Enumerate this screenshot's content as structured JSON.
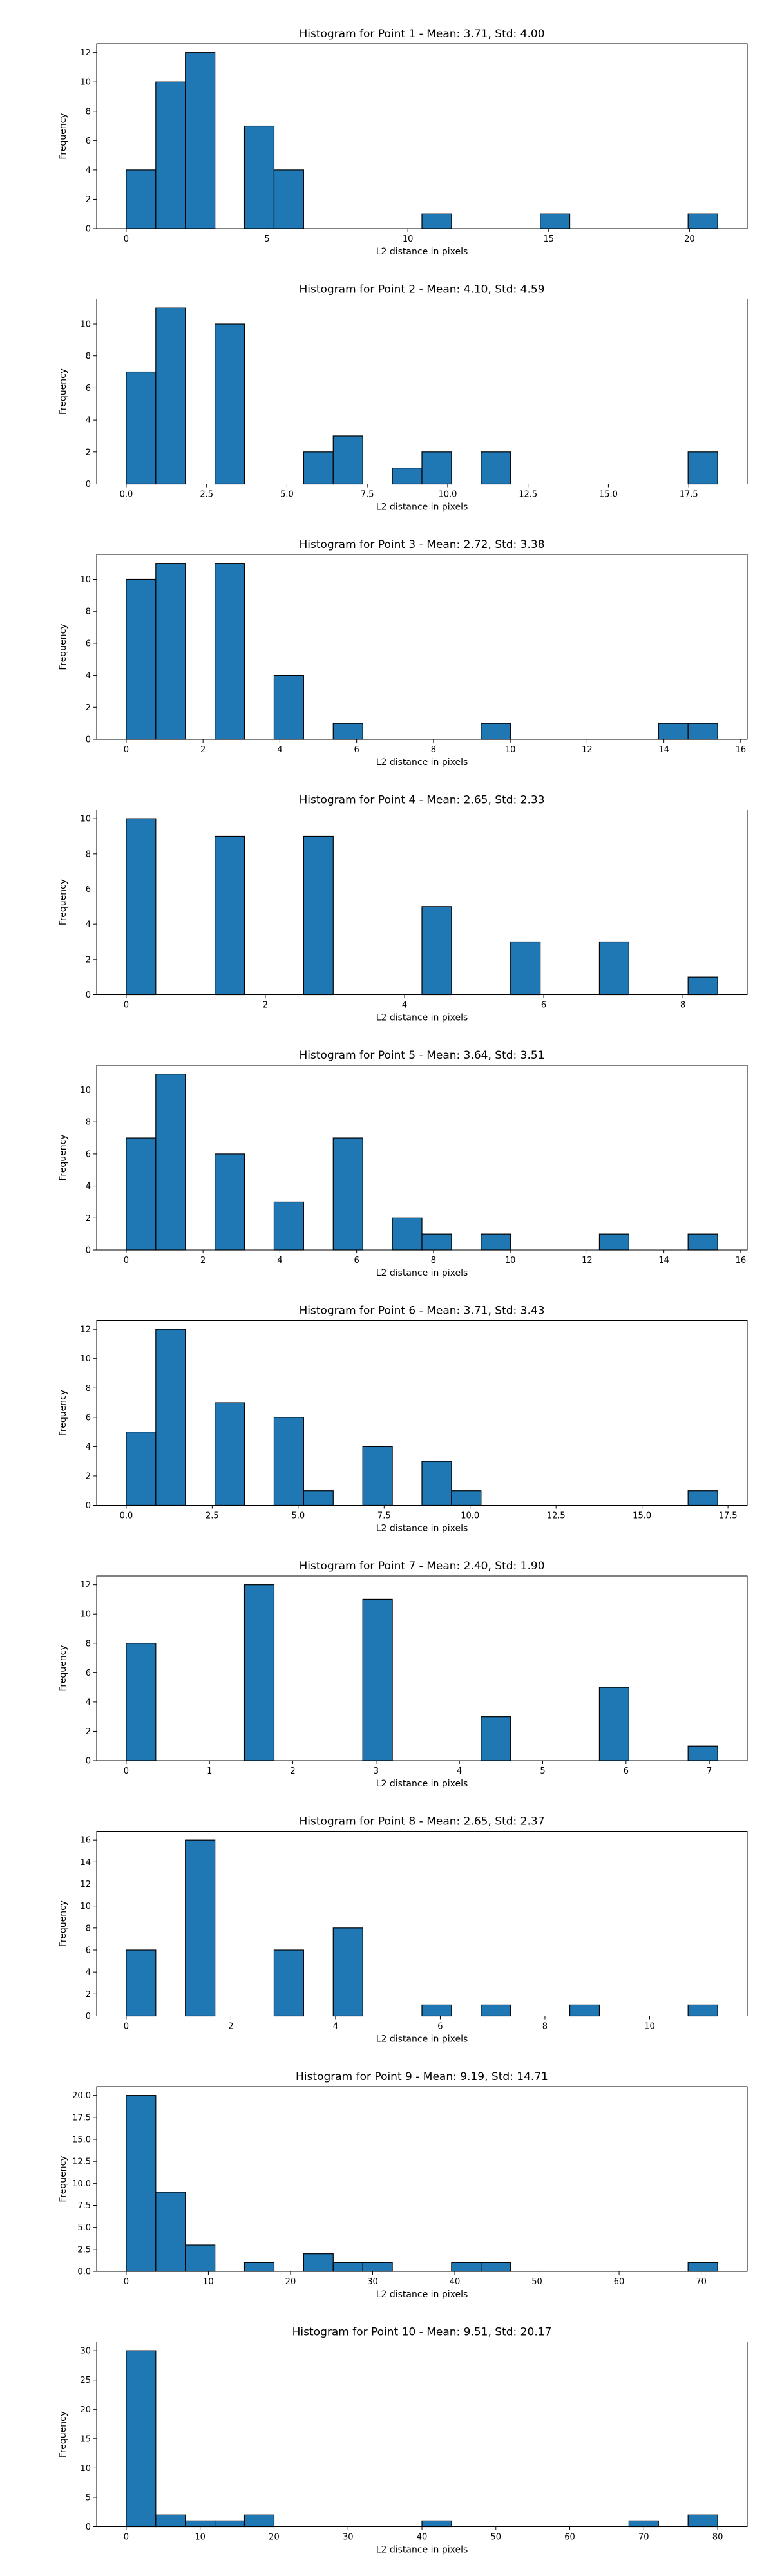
{
  "chart_data": [
    {
      "type": "bar",
      "title": "Histogram for Point 1 - Mean: 3.71, Std: 4.00",
      "xlabel": "L2 distance in pixels",
      "ylabel": "Frequency",
      "xlim": [
        -1.05,
        22.05
      ],
      "ylim": [
        0,
        12.6
      ],
      "xticks": [
        0,
        5,
        10,
        15,
        20
      ],
      "xtick_labels": [
        "0",
        "5",
        "10",
        "15",
        "20"
      ],
      "yticks": [
        0,
        2,
        4,
        6,
        8,
        10,
        12
      ],
      "ytick_labels": [
        "0",
        "2",
        "4",
        "6",
        "8",
        "10",
        "12"
      ],
      "bins": [
        [
          0.0,
          1.05
        ],
        [
          1.05,
          2.1
        ],
        [
          2.1,
          3.15
        ],
        [
          4.2,
          5.25
        ],
        [
          5.25,
          6.3
        ],
        [
          10.5,
          11.55
        ],
        [
          14.7,
          15.75
        ],
        [
          19.95,
          21.0
        ]
      ],
      "values": [
        4,
        10,
        12,
        7,
        4,
        1,
        1,
        1
      ],
      "bar_color": "#1f77b4",
      "edge_color": "#000000",
      "grid": false
    },
    {
      "type": "bar",
      "title": "Histogram for Point 2 - Mean: 4.10, Std: 4.59",
      "xlabel": "L2 distance in pixels",
      "ylabel": "Frequency",
      "xlim": [
        -0.92,
        19.32
      ],
      "ylim": [
        0,
        11.55
      ],
      "xticks": [
        0,
        2.5,
        5,
        7.5,
        10,
        12.5,
        15,
        17.5
      ],
      "xtick_labels": [
        "0.0",
        "2.5",
        "5.0",
        "7.5",
        "10.0",
        "12.5",
        "15.0",
        "17.5"
      ],
      "yticks": [
        0,
        2,
        4,
        6,
        8,
        10
      ],
      "ytick_labels": [
        "0",
        "2",
        "4",
        "6",
        "8",
        "10"
      ],
      "bins": [
        [
          0.0,
          0.92
        ],
        [
          0.92,
          1.84
        ],
        [
          2.76,
          3.68
        ],
        [
          5.52,
          6.44
        ],
        [
          6.44,
          7.36
        ],
        [
          8.28,
          9.2
        ],
        [
          9.2,
          10.12
        ],
        [
          11.04,
          11.96
        ],
        [
          17.48,
          18.4
        ]
      ],
      "values": [
        7,
        11,
        10,
        2,
        3,
        1,
        2,
        2,
        2
      ],
      "bar_color": "#1f77b4",
      "edge_color": "#000000",
      "grid": false
    },
    {
      "type": "bar",
      "title": "Histogram for Point 3 - Mean: 2.72, Std: 3.38",
      "xlabel": "L2 distance in pixels",
      "ylabel": "Frequency",
      "xlim": [
        -0.77,
        16.17
      ],
      "ylim": [
        0,
        11.55
      ],
      "xticks": [
        0,
        2,
        4,
        6,
        8,
        10,
        12,
        14,
        16
      ],
      "xtick_labels": [
        "0",
        "2",
        "4",
        "6",
        "8",
        "10",
        "12",
        "14",
        "16"
      ],
      "yticks": [
        0,
        2,
        4,
        6,
        8,
        10
      ],
      "ytick_labels": [
        "0",
        "2",
        "4",
        "6",
        "8",
        "10"
      ],
      "bins": [
        [
          0.0,
          0.77
        ],
        [
          0.77,
          1.54
        ],
        [
          2.31,
          3.08
        ],
        [
          3.85,
          4.62
        ],
        [
          5.39,
          6.16
        ],
        [
          9.24,
          10.01
        ],
        [
          13.86,
          14.63
        ],
        [
          14.63,
          15.4
        ]
      ],
      "values": [
        10,
        11,
        11,
        4,
        1,
        1,
        1,
        1
      ],
      "bar_color": "#1f77b4",
      "edge_color": "#000000",
      "grid": false
    },
    {
      "type": "bar",
      "title": "Histogram for Point 4 - Mean: 2.65, Std: 2.33",
      "xlabel": "L2 distance in pixels",
      "ylabel": "Frequency",
      "xlim": [
        -0.425,
        8.925
      ],
      "ylim": [
        0,
        10.5
      ],
      "xticks": [
        0,
        2,
        4,
        6,
        8
      ],
      "xtick_labels": [
        "0",
        "2",
        "4",
        "6",
        "8"
      ],
      "yticks": [
        0,
        2,
        4,
        6,
        8,
        10
      ],
      "ytick_labels": [
        "0",
        "2",
        "4",
        "6",
        "8",
        "10"
      ],
      "bins": [
        [
          0.0,
          0.425
        ],
        [
          1.275,
          1.7
        ],
        [
          2.55,
          2.975
        ],
        [
          4.25,
          4.675
        ],
        [
          5.525,
          5.95
        ],
        [
          6.8,
          7.225
        ],
        [
          8.075,
          8.5
        ]
      ],
      "values": [
        10,
        9,
        9,
        5,
        3,
        3,
        1
      ],
      "bar_color": "#1f77b4",
      "edge_color": "#000000",
      "grid": false
    },
    {
      "type": "bar",
      "title": "Histogram for Point 5 - Mean: 3.64, Std: 3.51",
      "xlabel": "L2 distance in pixels",
      "ylabel": "Frequency",
      "xlim": [
        -0.77,
        16.17
      ],
      "ylim": [
        0,
        11.55
      ],
      "xticks": [
        0,
        2,
        4,
        6,
        8,
        10,
        12,
        14,
        16
      ],
      "xtick_labels": [
        "0",
        "2",
        "4",
        "6",
        "8",
        "10",
        "12",
        "14",
        "16"
      ],
      "yticks": [
        0,
        2,
        4,
        6,
        8,
        10
      ],
      "ytick_labels": [
        "0",
        "2",
        "4",
        "6",
        "8",
        "10"
      ],
      "bins": [
        [
          0.0,
          0.77
        ],
        [
          0.77,
          1.54
        ],
        [
          2.31,
          3.08
        ],
        [
          3.85,
          4.62
        ],
        [
          5.39,
          6.16
        ],
        [
          6.93,
          7.7
        ],
        [
          7.7,
          8.47
        ],
        [
          9.24,
          10.01
        ],
        [
          12.32,
          13.09
        ],
        [
          14.63,
          15.4
        ]
      ],
      "values": [
        7,
        11,
        6,
        3,
        7,
        2,
        1,
        1,
        1,
        1
      ],
      "bar_color": "#1f77b4",
      "edge_color": "#000000",
      "grid": false
    },
    {
      "type": "bar",
      "title": "Histogram for Point 6 - Mean: 3.71, Std: 3.43",
      "xlabel": "L2 distance in pixels",
      "ylabel": "Frequency",
      "xlim": [
        -0.86,
        18.06
      ],
      "ylim": [
        0,
        12.6
      ],
      "xticks": [
        0,
        2.5,
        5,
        7.5,
        10,
        12.5,
        15,
        17.5
      ],
      "xtick_labels": [
        "0.0",
        "2.5",
        "5.0",
        "7.5",
        "10.0",
        "12.5",
        "15.0",
        "17.5"
      ],
      "yticks": [
        0,
        2,
        4,
        6,
        8,
        10,
        12
      ],
      "ytick_labels": [
        "0",
        "2",
        "4",
        "6",
        "8",
        "10",
        "12"
      ],
      "bins": [
        [
          0.0,
          0.86
        ],
        [
          0.86,
          1.72
        ],
        [
          2.58,
          3.44
        ],
        [
          4.3,
          5.16
        ],
        [
          5.16,
          6.02
        ],
        [
          6.88,
          7.74
        ],
        [
          8.6,
          9.46
        ],
        [
          9.46,
          10.32
        ],
        [
          16.34,
          17.2
        ]
      ],
      "values": [
        5,
        12,
        7,
        6,
        1,
        4,
        3,
        1,
        1
      ],
      "bar_color": "#1f77b4",
      "edge_color": "#000000",
      "grid": false
    },
    {
      "type": "bar",
      "title": "Histogram for Point 7 - Mean: 2.40, Std: 1.90",
      "xlabel": "L2 distance in pixels",
      "ylabel": "Frequency",
      "xlim": [
        -0.355,
        7.455
      ],
      "ylim": [
        0,
        12.6
      ],
      "xticks": [
        0,
        1,
        2,
        3,
        4,
        5,
        6,
        7
      ],
      "xtick_labels": [
        "0",
        "1",
        "2",
        "3",
        "4",
        "5",
        "6",
        "7"
      ],
      "yticks": [
        0,
        2,
        4,
        6,
        8,
        10,
        12
      ],
      "ytick_labels": [
        "0",
        "2",
        "4",
        "6",
        "8",
        "10",
        "12"
      ],
      "bins": [
        [
          0.0,
          0.355
        ],
        [
          1.42,
          1.775
        ],
        [
          2.84,
          3.195
        ],
        [
          4.26,
          4.615
        ],
        [
          5.68,
          6.035
        ],
        [
          6.745,
          7.1
        ]
      ],
      "values": [
        8,
        12,
        11,
        3,
        5,
        1
      ],
      "bar_color": "#1f77b4",
      "edge_color": "#000000",
      "grid": false
    },
    {
      "type": "bar",
      "title": "Histogram for Point 8 - Mean: 2.65, Std: 2.37",
      "xlabel": "L2 distance in pixels",
      "ylabel": "Frequency",
      "xlim": [
        -0.565,
        11.865
      ],
      "ylim": [
        0,
        16.8
      ],
      "xticks": [
        0,
        2,
        4,
        6,
        8,
        10
      ],
      "xtick_labels": [
        "0",
        "2",
        "4",
        "6",
        "8",
        "10"
      ],
      "yticks": [
        0,
        2,
        4,
        6,
        8,
        10,
        12,
        14,
        16
      ],
      "ytick_labels": [
        "0",
        "2",
        "4",
        "6",
        "8",
        "10",
        "12",
        "14",
        "16"
      ],
      "bins": [
        [
          0.0,
          0.565
        ],
        [
          1.13,
          1.695
        ],
        [
          2.825,
          3.39
        ],
        [
          3.955,
          4.52
        ],
        [
          5.65,
          6.215
        ],
        [
          6.78,
          7.345
        ],
        [
          8.475,
          9.04
        ],
        [
          10.735,
          11.3
        ]
      ],
      "values": [
        6,
        16,
        6,
        8,
        1,
        1,
        1,
        1
      ],
      "bar_color": "#1f77b4",
      "edge_color": "#000000",
      "grid": false
    },
    {
      "type": "bar",
      "title": "Histogram for Point 9 - Mean: 9.19, Std: 14.71",
      "xlabel": "L2 distance in pixels",
      "ylabel": "Frequency",
      "xlim": [
        -3.6,
        75.6
      ],
      "ylim": [
        0,
        21
      ],
      "xticks": [
        0,
        10,
        20,
        30,
        40,
        50,
        60,
        70
      ],
      "xtick_labels": [
        "0",
        "10",
        "20",
        "30",
        "40",
        "50",
        "60",
        "70"
      ],
      "yticks": [
        0,
        2.5,
        5,
        7.5,
        10,
        12.5,
        15,
        17.5,
        20
      ],
      "ytick_labels": [
        "0.0",
        "2.5",
        "5.0",
        "7.5",
        "10.0",
        "12.5",
        "15.0",
        "17.5",
        "20.0"
      ],
      "bins": [
        [
          0.0,
          3.6
        ],
        [
          3.6,
          7.2
        ],
        [
          7.2,
          10.8
        ],
        [
          14.4,
          18.0
        ],
        [
          21.6,
          25.2
        ],
        [
          25.2,
          28.8
        ],
        [
          28.8,
          32.4
        ],
        [
          39.6,
          43.2
        ],
        [
          43.2,
          46.8
        ],
        [
          68.4,
          72.0
        ]
      ],
      "values": [
        20,
        9,
        3,
        1,
        2,
        1,
        1,
        1,
        1,
        1
      ],
      "bar_color": "#1f77b4",
      "edge_color": "#000000",
      "grid": false
    },
    {
      "type": "bar",
      "title": "Histogram for Point 10 - Mean: 9.51, Std: 20.17",
      "xlabel": "L2 distance in pixels",
      "ylabel": "Frequency",
      "xlim": [
        -4.0,
        84.0
      ],
      "ylim": [
        0,
        31.5
      ],
      "xticks": [
        0,
        10,
        20,
        30,
        40,
        50,
        60,
        70,
        80
      ],
      "xtick_labels": [
        "0",
        "10",
        "20",
        "30",
        "40",
        "50",
        "60",
        "70",
        "80"
      ],
      "yticks": [
        0,
        5,
        10,
        15,
        20,
        25,
        30
      ],
      "ytick_labels": [
        "0",
        "5",
        "10",
        "15",
        "20",
        "25",
        "30"
      ],
      "bins": [
        [
          0.0,
          4.0
        ],
        [
          4.0,
          8.0
        ],
        [
          8.0,
          12.0
        ],
        [
          12.0,
          16.0
        ],
        [
          16.0,
          20.0
        ],
        [
          40.0,
          44.0
        ],
        [
          68.0,
          72.0
        ],
        [
          76.0,
          80.0
        ]
      ],
      "values": [
        30,
        2,
        1,
        1,
        2,
        1,
        1,
        2
      ],
      "bar_color": "#1f77b4",
      "edge_color": "#000000",
      "grid": false
    }
  ]
}
